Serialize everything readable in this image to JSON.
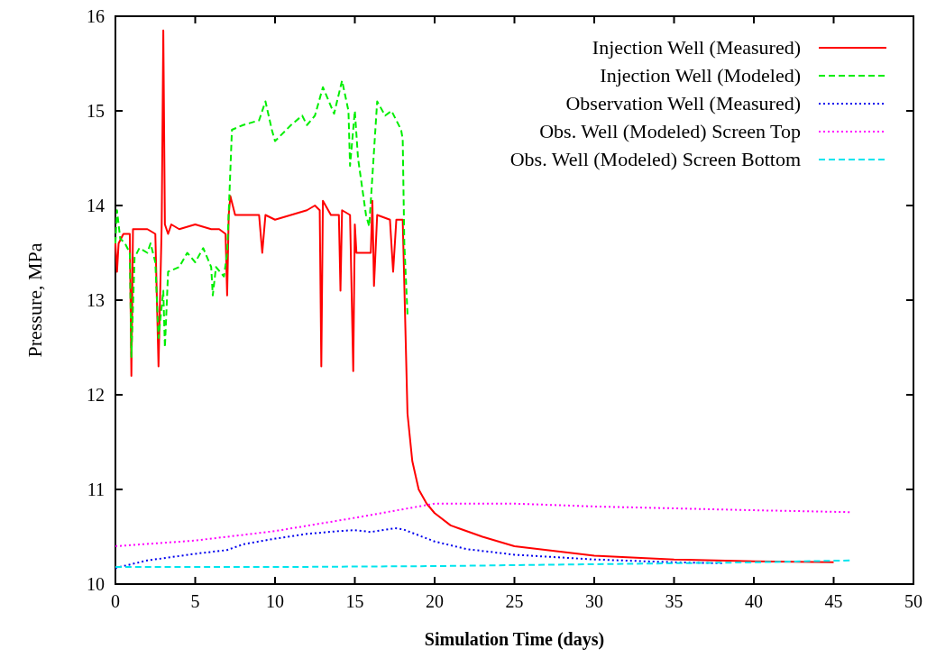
{
  "chart_data": {
    "type": "line",
    "xlabel": "Simulation Time (days)",
    "ylabel": "Pressure, MPa",
    "xlim": [
      0,
      50
    ],
    "ylim": [
      10,
      16
    ],
    "xticks": [
      0,
      5,
      10,
      15,
      20,
      25,
      30,
      35,
      40,
      45,
      50
    ],
    "yticks": [
      10,
      11,
      12,
      13,
      14,
      15,
      16
    ],
    "grid": false,
    "legend": "top right",
    "marker": "none",
    "series": [
      {
        "name": "Injection Well (Measured)",
        "color": "#ff0000",
        "line_style": "solid",
        "x": [
          0,
          0.1,
          0.2,
          0.5,
          0.9,
          1.0,
          1.1,
          1.5,
          2.0,
          2.5,
          2.7,
          2.9,
          3.0,
          3.1,
          3.3,
          3.5,
          4,
          5,
          6,
          6.5,
          6.9,
          7.0,
          7.1,
          7.2,
          7.5,
          9.0,
          9.2,
          9.4,
          10,
          12,
          12.5,
          12.8,
          12.9,
          13.0,
          13.5,
          14.0,
          14.1,
          14.2,
          14.7,
          14.9,
          15.0,
          15.1,
          15.2,
          16.0,
          16.1,
          16.2,
          16.4,
          17.2,
          17.4,
          17.6,
          18.0,
          18.3,
          18.6,
          19,
          19.5,
          20,
          21,
          23,
          25,
          30,
          35,
          40,
          45
        ],
        "values": [
          13.6,
          13.3,
          13.6,
          13.7,
          13.7,
          12.2,
          13.75,
          13.75,
          13.75,
          13.7,
          12.3,
          13.8,
          15.85,
          13.8,
          13.7,
          13.8,
          13.75,
          13.8,
          13.75,
          13.75,
          13.7,
          13.05,
          13.9,
          14.1,
          13.9,
          13.9,
          13.5,
          13.9,
          13.85,
          13.95,
          14.0,
          13.95,
          12.3,
          14.05,
          13.9,
          13.9,
          13.1,
          13.95,
          13.9,
          12.25,
          13.8,
          13.5,
          13.5,
          13.5,
          14.05,
          13.15,
          13.9,
          13.85,
          13.3,
          13.85,
          13.85,
          11.8,
          11.3,
          11.0,
          10.85,
          10.75,
          10.62,
          10.5,
          10.4,
          10.3,
          10.26,
          10.24,
          10.23
        ]
      },
      {
        "name": "Injection Well (Modeled)",
        "color": "#00ee00",
        "line_style": "dashed",
        "x": [
          0,
          0.1,
          0.3,
          0.6,
          0.9,
          1.0,
          1.2,
          1.5,
          2.0,
          2.2,
          2.5,
          2.7,
          3.0,
          3.1,
          3.3,
          4,
          4.5,
          5,
          5.5,
          6,
          6.1,
          6.3,
          6.8,
          7.0,
          7.3,
          8,
          9,
          9.4,
          9.8,
          10.0,
          11,
          11.7,
          12,
          12.5,
          13.0,
          13.7,
          14.2,
          14.6,
          14.7,
          15.0,
          15.2,
          15.7,
          15.9,
          16.4,
          16.9,
          17.3,
          17.6,
          17.9,
          18.0,
          18.1,
          18.3
        ],
        "values": [
          13.6,
          13.95,
          13.65,
          13.6,
          13.5,
          12.4,
          13.45,
          13.55,
          13.5,
          13.6,
          13.4,
          12.6,
          13.1,
          12.5,
          13.3,
          13.35,
          13.5,
          13.4,
          13.55,
          13.35,
          13.05,
          13.35,
          13.25,
          13.5,
          14.8,
          14.85,
          14.9,
          15.1,
          14.8,
          14.68,
          14.85,
          14.95,
          14.85,
          14.95,
          15.25,
          14.97,
          15.32,
          15.0,
          14.42,
          15.0,
          14.5,
          13.9,
          13.78,
          15.1,
          14.95,
          15.0,
          14.9,
          14.8,
          14.7,
          13.6,
          12.85
        ]
      },
      {
        "name": "Observation Well (Measured)",
        "color": "#0000ee",
        "line_style": "dotted",
        "x": [
          0,
          2,
          5,
          7,
          8,
          10,
          12,
          14,
          15,
          16,
          17.5,
          18,
          20,
          22,
          25,
          30,
          35,
          38
        ],
        "values": [
          10.17,
          10.25,
          10.32,
          10.36,
          10.42,
          10.48,
          10.53,
          10.56,
          10.57,
          10.55,
          10.59,
          10.58,
          10.45,
          10.37,
          10.31,
          10.26,
          10.23,
          10.22
        ]
      },
      {
        "name": "Obs. Well (Modeled) Screen Top",
        "color": "#ff00ff",
        "line_style": "dotted",
        "x": [
          0,
          5,
          10,
          15,
          20,
          25,
          30,
          40,
          46
        ],
        "values": [
          10.4,
          10.46,
          10.56,
          10.7,
          10.85,
          10.85,
          10.82,
          10.78,
          10.76
        ]
      },
      {
        "name": "Obs. Well (Modeled) Screen Bottom",
        "color": "#00e5ee",
        "line_style": "dashed",
        "x": [
          0,
          10,
          20,
          30,
          40,
          46
        ],
        "values": [
          10.18,
          10.18,
          10.19,
          10.21,
          10.23,
          10.25
        ]
      }
    ]
  }
}
